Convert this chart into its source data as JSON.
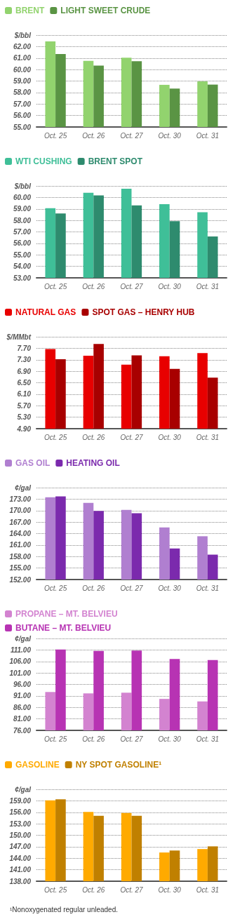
{
  "chart_data": [
    {
      "type": "bar",
      "categories": [
        "Oct. 25",
        "Oct. 26",
        "Oct. 27",
        "Oct. 30",
        "Oct. 31"
      ],
      "ylabel": "$/bbl",
      "legend": "top left",
      "grid": "y",
      "ylim": [
        55,
        63
      ],
      "yticks": [
        {
          "value": 55,
          "label": "55.00"
        },
        {
          "value": 56,
          "label": "56.00"
        },
        {
          "value": 57,
          "label": "57.00"
        },
        {
          "value": 58,
          "label": "58.00"
        },
        {
          "value": 59,
          "label": "59.00"
        },
        {
          "value": 60,
          "label": "60.00"
        },
        {
          "value": 61,
          "label": "61.00"
        },
        {
          "value": 62,
          "label": "62.00"
        },
        {
          "value": 63,
          "label": null
        }
      ],
      "series": [
        {
          "name": "BRENT",
          "color": "#92d36e",
          "values": [
            62.45,
            60.76,
            61.03,
            58.67,
            58.97
          ]
        },
        {
          "name": "LIGHT SWEET CRUDE",
          "color": "#5a9444",
          "values": [
            61.35,
            60.34,
            60.72,
            58.34,
            58.69
          ]
        }
      ]
    },
    {
      "type": "bar",
      "categories": [
        "Oct. 25",
        "Oct. 26",
        "Oct. 27",
        "Oct. 30",
        "Oct. 31"
      ],
      "ylabel": "$/bbl",
      "legend": "top left",
      "grid": "y",
      "ylim": [
        53,
        61
      ],
      "yticks": [
        {
          "value": 53,
          "label": "53.00"
        },
        {
          "value": 54,
          "label": "54.00"
        },
        {
          "value": 55,
          "label": "55.00"
        },
        {
          "value": 56,
          "label": "56.00"
        },
        {
          "value": 57,
          "label": "57.00"
        },
        {
          "value": 58,
          "label": "58.00"
        },
        {
          "value": 59,
          "label": "59.00"
        },
        {
          "value": 60,
          "label": "60.00"
        },
        {
          "value": 61,
          "label": null
        }
      ],
      "series": [
        {
          "name": "WTI CUSHING",
          "color": "#3fbf98",
          "values": [
            59.06,
            60.41,
            60.76,
            59.41,
            58.71
          ]
        },
        {
          "name": "BRENT SPOT",
          "color": "#2e8b6e",
          "values": [
            58.61,
            60.18,
            59.3,
            57.93,
            56.6
          ]
        }
      ]
    },
    {
      "type": "bar",
      "categories": [
        "Oct. 25",
        "Oct. 26",
        "Oct. 27",
        "Oct. 30",
        "Oct. 31"
      ],
      "ylabel": "$/MMbt",
      "legend": "top left",
      "grid": "y",
      "ylim": [
        4.9,
        8.1
      ],
      "yticks": [
        {
          "value": 4.9,
          "label": "4.90"
        },
        {
          "value": 5.3,
          "label": "5.30"
        },
        {
          "value": 5.7,
          "label": "5.70"
        },
        {
          "value": 6.1,
          "label": "6.10"
        },
        {
          "value": 6.5,
          "label": "6.50"
        },
        {
          "value": 6.9,
          "label": "6.90"
        },
        {
          "value": 7.3,
          "label": "7.30"
        },
        {
          "value": 7.7,
          "label": "7.70"
        },
        {
          "value": 8.1,
          "label": null
        }
      ],
      "series": [
        {
          "name": "NATURAL GAS",
          "color": "#e80000",
          "values": [
            7.67,
            7.44,
            7.13,
            7.42,
            7.53
          ]
        },
        {
          "name": "SPOT GAS – HENRY HUB",
          "color": "#a80000",
          "values": [
            7.32,
            7.85,
            7.45,
            6.98,
            6.68
          ]
        }
      ]
    },
    {
      "type": "bar",
      "categories": [
        "Oct. 25",
        "Oct. 26",
        "Oct. 27",
        "Oct. 30",
        "Oct. 31"
      ],
      "ylabel": "¢/gal",
      "legend": "top left",
      "grid": "y",
      "ylim": [
        152,
        176
      ],
      "yticks": [
        {
          "value": 152,
          "label": "152.00"
        },
        {
          "value": 155,
          "label": "155.00"
        },
        {
          "value": 158,
          "label": "158.00"
        },
        {
          "value": 161,
          "label": "161.00"
        },
        {
          "value": 164,
          "label": "164.00"
        },
        {
          "value": 167,
          "label": "167.00"
        },
        {
          "value": 170,
          "label": "170.00"
        },
        {
          "value": 173,
          "label": "173.00"
        },
        {
          "value": 176,
          "label": null
        }
      ],
      "series": [
        {
          "name": "GAS OIL",
          "color": "#b07fd0",
          "values": [
            173.5,
            172.0,
            170.2,
            165.6,
            163.3
          ]
        },
        {
          "name": "HEATING OIL",
          "color": "#7b2aad",
          "values": [
            173.7,
            169.9,
            169.3,
            160.1,
            158.5
          ]
        }
      ]
    },
    {
      "type": "bar",
      "categories": [
        "Oct. 25",
        "Oct. 26",
        "Oct. 27",
        "Oct. 30",
        "Oct. 31"
      ],
      "ylabel": "¢/gal",
      "legend": "top left",
      "grid": "y",
      "ylim": [
        76,
        116
      ],
      "yticks": [
        {
          "value": 76,
          "label": "76.00"
        },
        {
          "value": 81,
          "label": "81.00"
        },
        {
          "value": 86,
          "label": "86.00"
        },
        {
          "value": 91,
          "label": "91.00"
        },
        {
          "value": 96,
          "label": "96.00"
        },
        {
          "value": 101,
          "label": "101.00"
        },
        {
          "value": 106,
          "label": "106.00"
        },
        {
          "value": 111,
          "label": "111.00"
        },
        {
          "value": 116,
          "label": null
        }
      ],
      "series": [
        {
          "name": "PROPANE – MT. BELVIEU",
          "color": "#d383d0",
          "values": [
            92.7,
            92.1,
            92.4,
            89.7,
            88.6
          ]
        },
        {
          "name": "BUTANE – MT. BELVIEU",
          "color": "#b733b3",
          "values": [
            111.2,
            110.6,
            110.7,
            107.1,
            106.6
          ]
        }
      ]
    },
    {
      "type": "bar",
      "categories": [
        "Oct. 25",
        "Oct. 26",
        "Oct. 27",
        "Oct. 30",
        "Oct. 31"
      ],
      "ylabel": "¢/gal",
      "legend": "top left",
      "grid": "y",
      "ylim": [
        138,
        162
      ],
      "yticks": [
        {
          "value": 138,
          "label": "138.00"
        },
        {
          "value": 141,
          "label": "141.00"
        },
        {
          "value": 144,
          "label": "144.00"
        },
        {
          "value": 147,
          "label": "147.00"
        },
        {
          "value": 150,
          "label": "150.00"
        },
        {
          "value": 153,
          "label": "153.00"
        },
        {
          "value": 156,
          "label": "156.00"
        },
        {
          "value": 159,
          "label": "159.00"
        },
        {
          "value": 162,
          "label": null
        }
      ],
      "annotations": [
        "¹Nonoxygenated regular unleaded."
      ],
      "series": [
        {
          "name": "GASOLINE",
          "color": "#ffaa00",
          "values": [
            159.1,
            156.1,
            155.8,
            145.5,
            146.4
          ]
        },
        {
          "name": "NY SPOT GASOLINE¹",
          "color": "#c08000",
          "values": [
            159.4,
            155.1,
            155.1,
            146.0,
            147.1
          ]
        }
      ]
    }
  ]
}
